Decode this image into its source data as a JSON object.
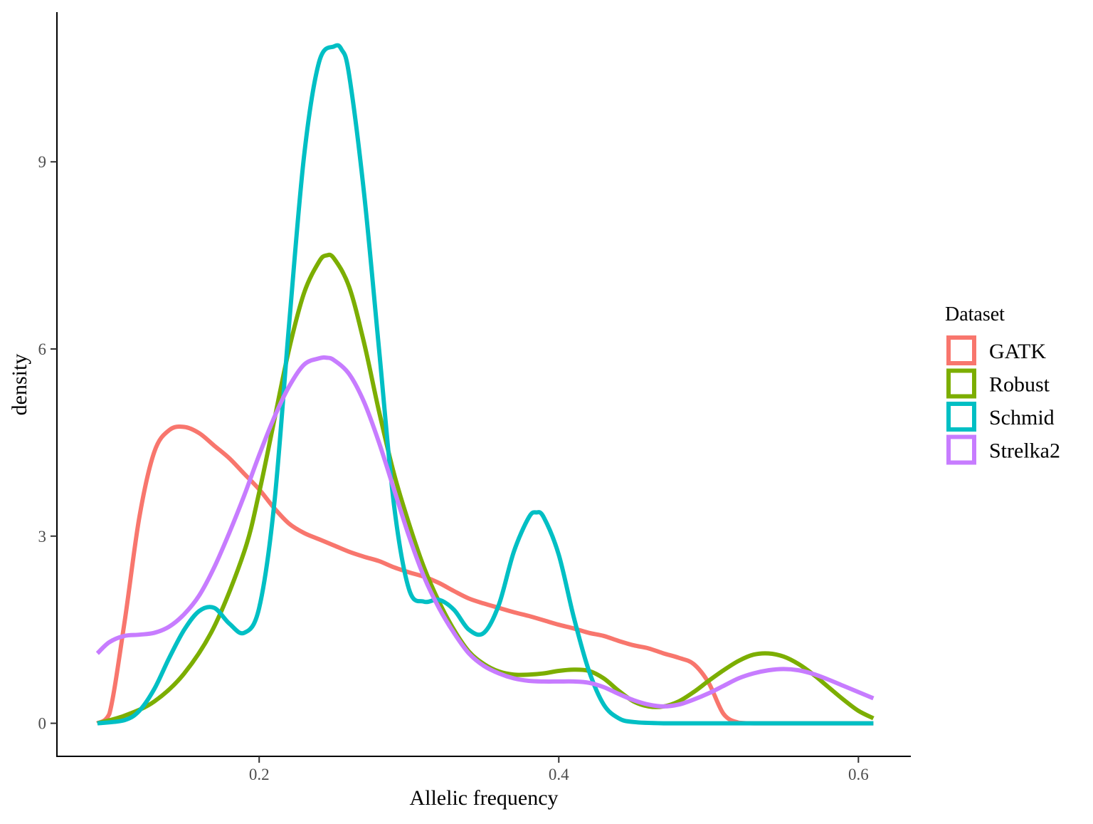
{
  "chart_data": {
    "type": "line",
    "subtype": "density",
    "title": "",
    "xlabel": "Allelic frequency",
    "ylabel": "density",
    "xlim": [
      0.065,
      0.635
    ],
    "ylim": [
      -0.53,
      11.4
    ],
    "x_ticks": [
      0.2,
      0.4,
      0.6
    ],
    "x_tick_labels": [
      "0.2",
      "0.4",
      "0.6"
    ],
    "y_ticks": [
      0,
      3,
      6,
      9
    ],
    "y_tick_labels": [
      "0",
      "3",
      "6",
      "9"
    ],
    "grid": false,
    "legend": {
      "title": "Dataset",
      "position": "right"
    },
    "series": [
      {
        "name": "GATK",
        "color": "#F8766D",
        "x": [
          0.092,
          0.1,
          0.11,
          0.12,
          0.13,
          0.14,
          0.15,
          0.16,
          0.17,
          0.18,
          0.19,
          0.2,
          0.21,
          0.22,
          0.23,
          0.24,
          0.25,
          0.26,
          0.27,
          0.28,
          0.29,
          0.3,
          0.31,
          0.32,
          0.33,
          0.34,
          0.35,
          0.36,
          0.37,
          0.38,
          0.39,
          0.4,
          0.41,
          0.42,
          0.43,
          0.44,
          0.45,
          0.46,
          0.47,
          0.48,
          0.49,
          0.5,
          0.51,
          0.52,
          0.53,
          0.55,
          0.57,
          0.59,
          0.61
        ],
        "values": [
          0.0,
          0.15,
          1.6,
          3.3,
          4.35,
          4.7,
          4.75,
          4.65,
          4.45,
          4.25,
          4.0,
          3.75,
          3.45,
          3.2,
          3.05,
          2.95,
          2.85,
          2.75,
          2.67,
          2.6,
          2.5,
          2.42,
          2.35,
          2.25,
          2.12,
          2.0,
          1.92,
          1.85,
          1.78,
          1.72,
          1.65,
          1.58,
          1.52,
          1.45,
          1.4,
          1.32,
          1.25,
          1.2,
          1.12,
          1.05,
          0.95,
          0.65,
          0.15,
          0.01,
          0.0,
          0.0,
          0.0,
          0.0,
          0.0
        ]
      },
      {
        "name": "Robust",
        "color": "#7CAE00",
        "x": [
          0.092,
          0.11,
          0.13,
          0.15,
          0.17,
          0.19,
          0.2,
          0.21,
          0.22,
          0.23,
          0.24,
          0.245,
          0.25,
          0.26,
          0.27,
          0.28,
          0.29,
          0.3,
          0.31,
          0.32,
          0.33,
          0.34,
          0.35,
          0.36,
          0.37,
          0.38,
          0.39,
          0.4,
          0.41,
          0.42,
          0.43,
          0.44,
          0.45,
          0.46,
          0.47,
          0.48,
          0.49,
          0.5,
          0.51,
          0.52,
          0.53,
          0.54,
          0.55,
          0.56,
          0.57,
          0.58,
          0.59,
          0.6,
          0.61
        ],
        "values": [
          0.0,
          0.12,
          0.35,
          0.8,
          1.55,
          2.75,
          3.7,
          4.85,
          6.0,
          6.9,
          7.4,
          7.5,
          7.45,
          7.0,
          6.1,
          5.0,
          4.0,
          3.2,
          2.5,
          1.95,
          1.5,
          1.15,
          0.95,
          0.83,
          0.78,
          0.78,
          0.8,
          0.84,
          0.86,
          0.84,
          0.72,
          0.52,
          0.35,
          0.27,
          0.27,
          0.35,
          0.5,
          0.68,
          0.85,
          1.0,
          1.1,
          1.12,
          1.07,
          0.95,
          0.78,
          0.58,
          0.38,
          0.2,
          0.08
        ]
      },
      {
        "name": "Schmid",
        "color": "#00BFC4",
        "x": [
          0.092,
          0.11,
          0.12,
          0.13,
          0.14,
          0.15,
          0.16,
          0.17,
          0.18,
          0.19,
          0.2,
          0.21,
          0.22,
          0.23,
          0.24,
          0.25,
          0.255,
          0.26,
          0.27,
          0.28,
          0.29,
          0.3,
          0.31,
          0.32,
          0.33,
          0.34,
          0.35,
          0.36,
          0.37,
          0.38,
          0.385,
          0.39,
          0.4,
          0.41,
          0.42,
          0.43,
          0.44,
          0.45,
          0.47,
          0.5,
          0.55,
          0.61
        ],
        "values": [
          0.0,
          0.05,
          0.2,
          0.55,
          1.05,
          1.5,
          1.8,
          1.85,
          1.6,
          1.45,
          1.85,
          3.5,
          6.4,
          9.1,
          10.6,
          10.85,
          10.8,
          10.4,
          8.5,
          6.0,
          3.5,
          2.15,
          1.95,
          1.98,
          1.82,
          1.5,
          1.45,
          1.9,
          2.75,
          3.3,
          3.38,
          3.3,
          2.7,
          1.7,
          0.85,
          0.3,
          0.08,
          0.02,
          0.0,
          0.0,
          0.0,
          0.0
        ]
      },
      {
        "name": "Strelka2",
        "color": "#C77CFF",
        "x": [
          0.092,
          0.1,
          0.11,
          0.12,
          0.13,
          0.14,
          0.15,
          0.16,
          0.17,
          0.18,
          0.19,
          0.2,
          0.21,
          0.22,
          0.23,
          0.24,
          0.245,
          0.25,
          0.26,
          0.27,
          0.28,
          0.29,
          0.3,
          0.31,
          0.32,
          0.33,
          0.34,
          0.35,
          0.36,
          0.37,
          0.38,
          0.39,
          0.4,
          0.41,
          0.42,
          0.43,
          0.44,
          0.45,
          0.46,
          0.47,
          0.48,
          0.49,
          0.5,
          0.51,
          0.52,
          0.53,
          0.54,
          0.55,
          0.56,
          0.57,
          0.58,
          0.59,
          0.6,
          0.61
        ],
        "values": [
          1.12,
          1.3,
          1.4,
          1.42,
          1.45,
          1.55,
          1.75,
          2.05,
          2.5,
          3.05,
          3.65,
          4.3,
          4.9,
          5.4,
          5.75,
          5.85,
          5.86,
          5.82,
          5.6,
          5.15,
          4.5,
          3.75,
          3.0,
          2.35,
          1.85,
          1.45,
          1.12,
          0.92,
          0.8,
          0.72,
          0.68,
          0.67,
          0.67,
          0.67,
          0.65,
          0.58,
          0.47,
          0.37,
          0.3,
          0.27,
          0.3,
          0.38,
          0.48,
          0.6,
          0.72,
          0.8,
          0.85,
          0.87,
          0.85,
          0.79,
          0.7,
          0.6,
          0.5,
          0.4
        ]
      }
    ]
  }
}
